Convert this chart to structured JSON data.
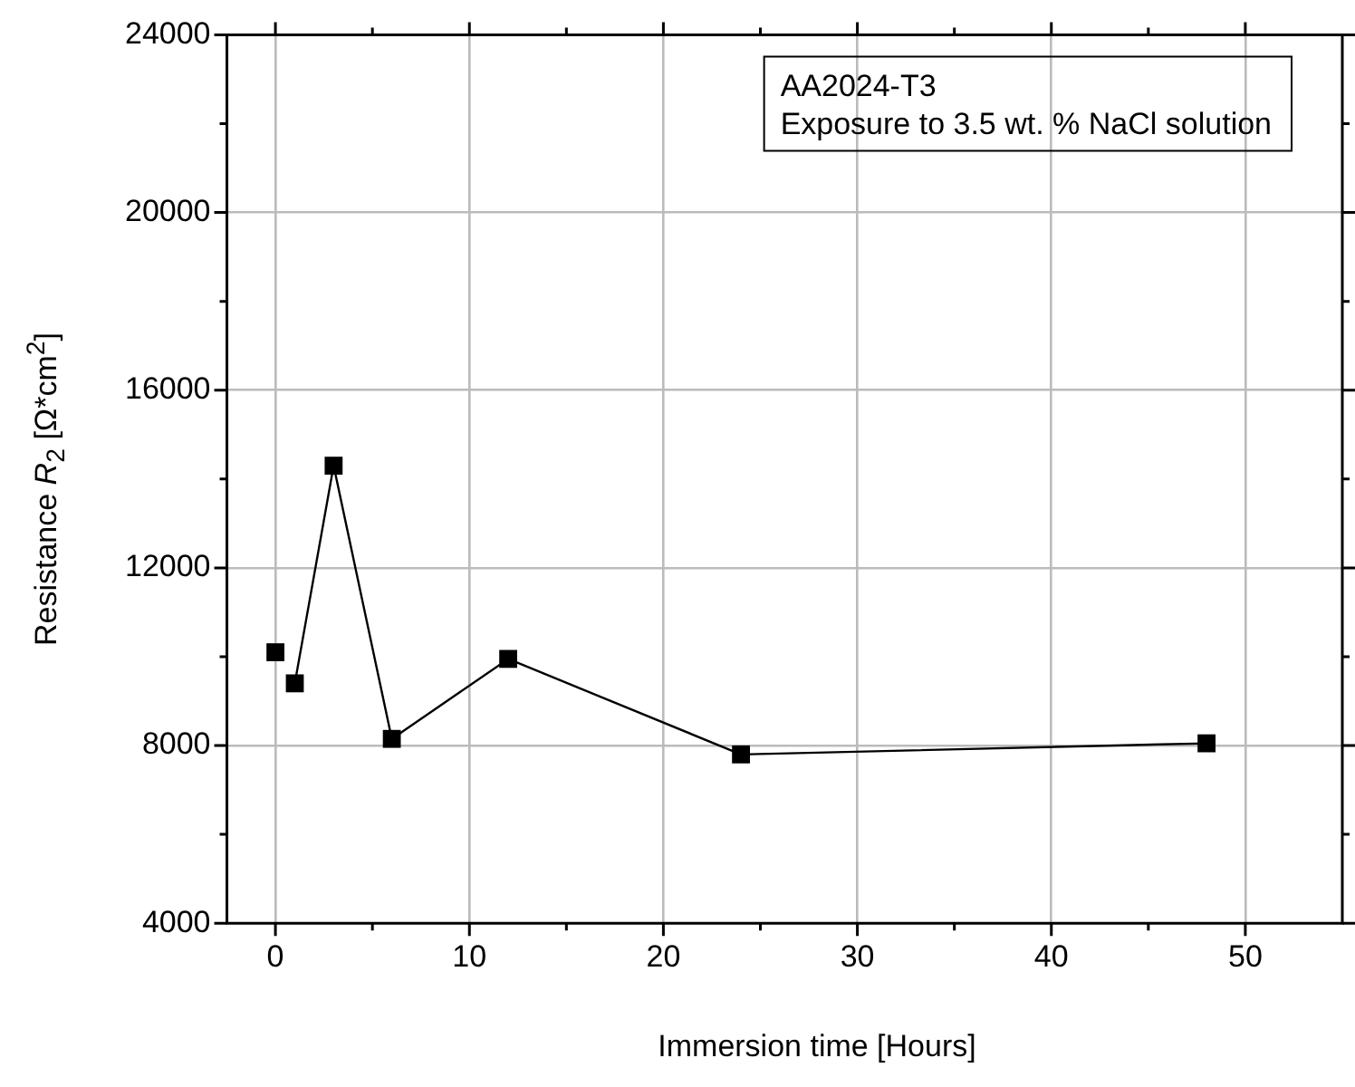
{
  "chart_data": {
    "type": "line",
    "xlabel": "Immersion time [Hours]",
    "ylabel": "Resistance R$_{2}$ [Ω*cm$^{2}$]",
    "annotations": [
      "AA2024-T3",
      "Exposure to 3.5 wt. % NaCl solution"
    ],
    "xlim": [
      -2.5,
      55
    ],
    "xticks": [
      0,
      {
        "value": 5,
        "label": null
      },
      10,
      {
        "value": 15,
        "label": null
      },
      20,
      {
        "value": 25,
        "label": null
      },
      30,
      {
        "value": 35,
        "label": null
      },
      40,
      {
        "value": 45,
        "label": null
      },
      50
    ],
    "ylim": [
      4000,
      24000
    ],
    "yticks": [
      4000,
      {
        "value": 6000,
        "label": null
      },
      8000,
      {
        "value": 10000,
        "label": null
      },
      12000,
      {
        "value": 14000,
        "label": null
      },
      16000,
      {
        "value": 18000,
        "label": null
      },
      20000,
      {
        "value": 22000,
        "label": null
      },
      24000
    ],
    "grid": true,
    "legend": false,
    "marker": "square",
    "line_style": "solid",
    "series": [
      {
        "color": "#000000",
        "x": [
          0
        ],
        "values": [
          10100
        ]
      },
      {
        "color": "#000000",
        "x": [
          1,
          3,
          6,
          12,
          24,
          48
        ],
        "values": [
          9400,
          14300,
          8150,
          9950,
          7800,
          8050
        ]
      }
    ]
  }
}
